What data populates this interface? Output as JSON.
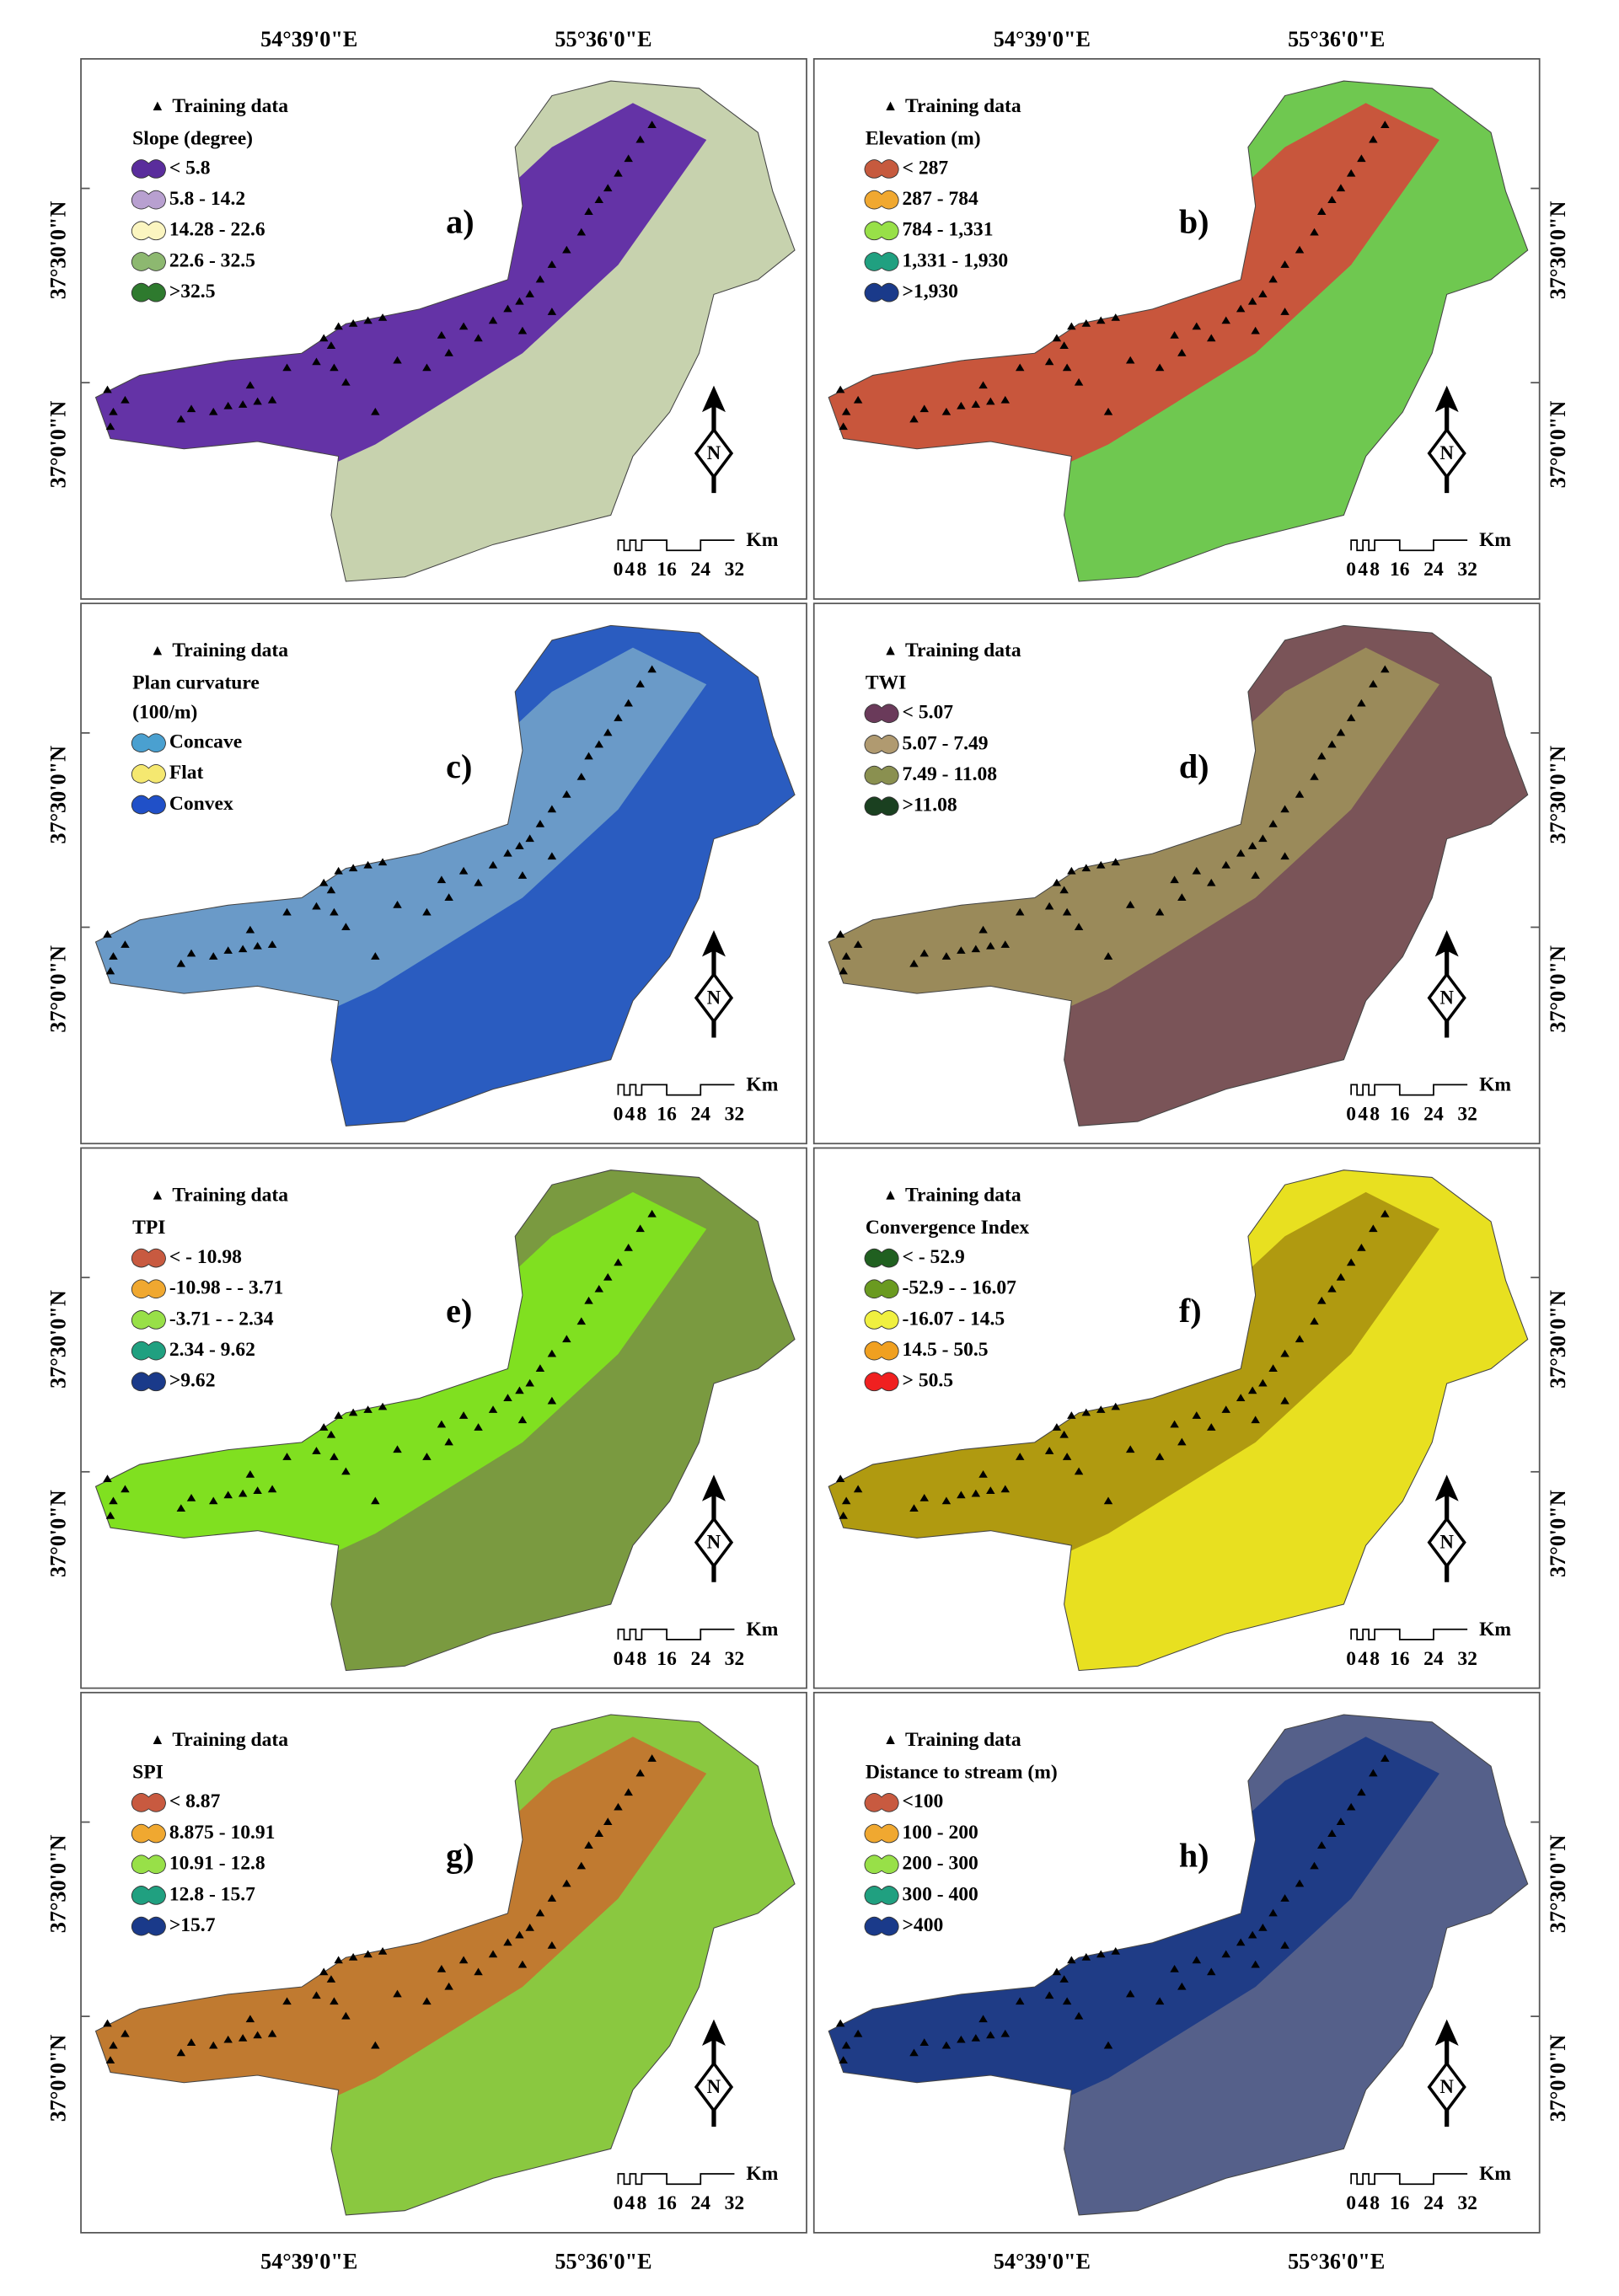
{
  "top_axis_labels": [
    "54°39'0\"E",
    "55°36'0\"E"
  ],
  "bottom_axis_labels": [
    "54°39'0\"E",
    "55°36'0\"E"
  ],
  "lat_labels": [
    "37°30'0\"N",
    "37°0'0\"N"
  ],
  "training_label": "Training data",
  "north_label": "N",
  "scale": {
    "unit": "Km",
    "labels": [
      "0",
      "4",
      "8",
      "16",
      "24",
      "32"
    ]
  },
  "panels": [
    {
      "letter": "a)",
      "legend_title": [
        "Slope (degree)"
      ],
      "map_colors": [
        "#6433a6",
        "#c7d2ae"
      ],
      "classes": [
        {
          "label": "< 5.8",
          "color": "#5a2d9c"
        },
        {
          "label": "5.8 - 14.2",
          "color": "#b8a0d0"
        },
        {
          "label": "14.28 - 22.6",
          "color": "#fbf5c0"
        },
        {
          "label": "22.6 - 32.5",
          "color": "#8db870"
        },
        {
          "label": ">32.5",
          "color": "#2e7a2e"
        }
      ]
    },
    {
      "letter": "b)",
      "legend_title": [
        "Elevation (m)"
      ],
      "map_colors": [
        "#c8563c",
        "#6fc850"
      ],
      "classes": [
        {
          "label": "< 287",
          "color": "#c65a3e"
        },
        {
          "label": "287 - 784",
          "color": "#f0a830"
        },
        {
          "label": "784 - 1,331",
          "color": "#98e048"
        },
        {
          "label": "1,331 - 1,930",
          "color": "#20a080"
        },
        {
          "label": ">1,930",
          "color": "#1a3a8a"
        }
      ]
    },
    {
      "letter": "c)",
      "legend_title": [
        "Plan curvature",
        "(100/m)"
      ],
      "map_colors": [
        "#6a9ac8",
        "#2a5cc0"
      ],
      "classes": [
        {
          "label": "Concave",
          "color": "#4aa0d0"
        },
        {
          "label": "Flat",
          "color": "#f5e870"
        },
        {
          "label": "Convex",
          "color": "#2050c8"
        }
      ]
    },
    {
      "letter": "d)",
      "legend_title": [
        "TWI"
      ],
      "map_colors": [
        "#9a8a5a",
        "#7a5458"
      ],
      "classes": [
        {
          "label": "< 5.07",
          "color": "#6a3a5a"
        },
        {
          "label": "5.07 - 7.49",
          "color": "#b09a70"
        },
        {
          "label": "7.49 - 11.08",
          "color": "#8a9050"
        },
        {
          "label": ">11.08",
          "color": "#1a4020"
        }
      ]
    },
    {
      "letter": "e)",
      "legend_title": [
        "TPI"
      ],
      "map_colors": [
        "#80e020",
        "#7a9a40"
      ],
      "classes": [
        {
          "label": "< - 10.98",
          "color": "#c85a40"
        },
        {
          "label": "-10.98 - - 3.71",
          "color": "#f0a830"
        },
        {
          "label": "-3.71 - - 2.34",
          "color": "#98e048"
        },
        {
          "label": "2.34 - 9.62",
          "color": "#20a080"
        },
        {
          "label": ">9.62",
          "color": "#1a3a8a"
        }
      ]
    },
    {
      "letter": "f)",
      "legend_title": [
        "Convergence Index"
      ],
      "map_colors": [
        "#b09a10",
        "#e8e020"
      ],
      "classes": [
        {
          "label": "< - 52.9",
          "color": "#206020"
        },
        {
          "label": "-52.9 - - 16.07",
          "color": "#6a9a20"
        },
        {
          "label": "-16.07 - 14.5",
          "color": "#f0f040"
        },
        {
          "label": "14.5 - 50.5",
          "color": "#f0a020"
        },
        {
          "label": "> 50.5",
          "color": "#f02020"
        }
      ]
    },
    {
      "letter": "g)",
      "legend_title": [
        "SPI"
      ],
      "map_colors": [
        "#c07a30",
        "#8ac840"
      ],
      "classes": [
        {
          "label": "< 8.87",
          "color": "#c85a40"
        },
        {
          "label": "8.875 - 10.91",
          "color": "#f0a830"
        },
        {
          "label": "10.91 - 12.8",
          "color": "#98e048"
        },
        {
          "label": "12.8 - 15.7",
          "color": "#20a080"
        },
        {
          "label": ">15.7",
          "color": "#1a3a8a"
        }
      ]
    },
    {
      "letter": "h)",
      "legend_title": [
        "Distance to stream (m)"
      ],
      "map_colors": [
        "#1f3c86",
        "#55608a"
      ],
      "classes": [
        {
          "label": "<100",
          "color": "#c85a40"
        },
        {
          "label": "100 - 200",
          "color": "#f0a830"
        },
        {
          "label": "200 - 300",
          "color": "#98e048"
        },
        {
          "label": "300 - 400",
          "color": "#20a080"
        },
        {
          "label": ">400",
          "color": "#1a3a8a"
        }
      ]
    }
  ]
}
